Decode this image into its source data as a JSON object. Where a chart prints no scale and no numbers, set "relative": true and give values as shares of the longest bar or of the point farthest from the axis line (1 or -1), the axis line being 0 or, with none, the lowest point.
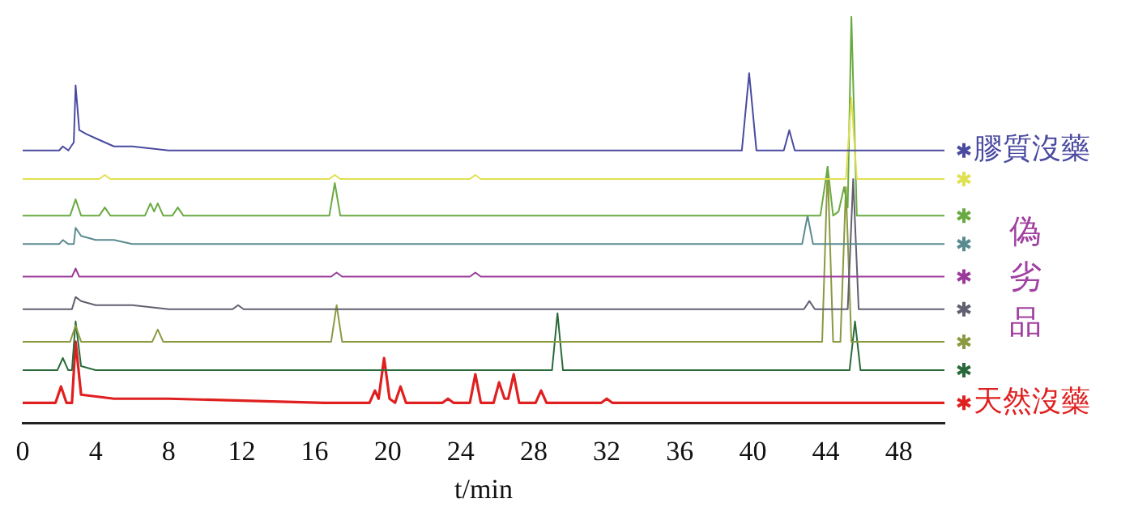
{
  "chart_data": {
    "type": "line",
    "relative": true,
    "xlabel": "t/min",
    "xlim": [
      0,
      50.5
    ],
    "xticks": [
      0,
      4,
      8,
      12,
      16,
      20,
      24,
      28,
      32,
      36,
      40,
      44,
      48
    ],
    "legend": "right",
    "marker": "none",
    "line_style": "solid",
    "annotations": [
      "偽劣品"
    ],
    "series": [
      {
        "name": "膠質沒藥",
        "color": "#4a4aa0",
        "x": [
          0,
          2,
          2.2,
          2.5,
          2.8,
          2.9,
          3.1,
          3.5,
          4,
          4.5,
          5,
          6,
          8,
          10,
          39.4,
          39.8,
          40.2,
          41.7,
          42,
          42.3,
          50.5
        ],
        "values": [
          0.67,
          0.67,
          0.68,
          0.67,
          0.69,
          0.83,
          0.72,
          0.71,
          0.7,
          0.69,
          0.68,
          0.68,
          0.67,
          0.67,
          0.67,
          0.86,
          0.67,
          0.67,
          0.72,
          0.67,
          0.67
        ]
      },
      {
        "color": "#e0e050",
        "x": [
          0,
          4.2,
          4.5,
          4.8,
          16.8,
          17.1,
          17.4,
          24.5,
          24.8,
          25.1,
          45.1,
          45.4,
          45.7,
          50.5
        ],
        "values": [
          0.6,
          0.6,
          0.61,
          0.6,
          0.6,
          0.61,
          0.6,
          0.6,
          0.61,
          0.6,
          0.6,
          0.8,
          0.6,
          0.6
        ]
      },
      {
        "color": "#6aaa40",
        "x": [
          0,
          2.6,
          2.9,
          3.2,
          4.2,
          4.5,
          4.8,
          6.7,
          7,
          7.2,
          7.4,
          7.7,
          8.2,
          8.5,
          8.8,
          16.8,
          17.1,
          17.4,
          43.7,
          44.1,
          44.4,
          44.7,
          45,
          45.2,
          45.4,
          45.7,
          50.5
        ],
        "values": [
          0.51,
          0.51,
          0.55,
          0.51,
          0.51,
          0.53,
          0.51,
          0.51,
          0.54,
          0.52,
          0.54,
          0.51,
          0.51,
          0.53,
          0.51,
          0.51,
          0.59,
          0.51,
          0.51,
          0.63,
          0.51,
          0.52,
          0.58,
          0.53,
          1,
          0.51,
          0.51
        ]
      },
      {
        "color": "#5a8a90",
        "x": [
          0,
          2,
          2.2,
          2.5,
          2.8,
          2.9,
          3.2,
          4,
          5,
          6,
          42.7,
          43,
          43.3,
          50.5
        ],
        "values": [
          0.44,
          0.44,
          0.45,
          0.44,
          0.44,
          0.48,
          0.46,
          0.45,
          0.45,
          0.44,
          0.44,
          0.51,
          0.44,
          0.44
        ]
      },
      {
        "color": "#9a3a9a",
        "x": [
          0,
          2.7,
          2.9,
          3.1,
          16.9,
          17.2,
          17.5,
          24.5,
          24.8,
          25.1,
          50.5
        ],
        "values": [
          0.36,
          0.36,
          0.38,
          0.36,
          0.36,
          0.37,
          0.36,
          0.36,
          0.37,
          0.36,
          0.36
        ]
      },
      {
        "color": "#606070",
        "x": [
          0,
          2.7,
          2.9,
          3.2,
          4,
          6,
          8,
          11.5,
          11.8,
          12.1,
          42.8,
          43.1,
          43.4,
          45.2,
          45.5,
          45.8,
          50.5
        ],
        "values": [
          0.28,
          0.28,
          0.31,
          0.3,
          0.29,
          0.29,
          0.28,
          0.28,
          0.29,
          0.28,
          0.28,
          0.3,
          0.28,
          0.28,
          0.6,
          0.28,
          0.28
        ]
      },
      {
        "color": "#8a9a40",
        "x": [
          0,
          2.6,
          2.9,
          3.2,
          7.1,
          7.4,
          7.7,
          16.9,
          17.2,
          17.5,
          43.8,
          44.1,
          44.4,
          44.8,
          45.1,
          45.4,
          50.5
        ],
        "values": [
          0.2,
          0.2,
          0.24,
          0.2,
          0.2,
          0.23,
          0.2,
          0.2,
          0.29,
          0.2,
          0.2,
          0.63,
          0.2,
          0.2,
          0.58,
          0.2,
          0.2
        ]
      },
      {
        "color": "#2a6a3a",
        "x": [
          0,
          1.9,
          2.2,
          2.5,
          2.7,
          2.9,
          3.2,
          4,
          29,
          29.3,
          29.6,
          45.3,
          45.6,
          45.9,
          50.5
        ],
        "values": [
          0.13,
          0.13,
          0.16,
          0.13,
          0.13,
          0.25,
          0.14,
          0.13,
          0.13,
          0.27,
          0.13,
          0.13,
          0.25,
          0.13,
          0.13
        ]
      },
      {
        "name": "天然沒藥",
        "color": "#e02020",
        "x": [
          0,
          1.8,
          2.1,
          2.4,
          2.7,
          2.9,
          3.2,
          5,
          8,
          16.5,
          19,
          19.3,
          19.5,
          19.8,
          20.1,
          20.4,
          20.7,
          21,
          23,
          23.3,
          23.6,
          24.5,
          24.8,
          25.1,
          25.8,
          26.1,
          26.4,
          26.6,
          26.9,
          27.2,
          28.1,
          28.4,
          28.7,
          31.7,
          32,
          32.3,
          50.5
        ],
        "values": [
          0.05,
          0.05,
          0.09,
          0.05,
          0.05,
          0.2,
          0.07,
          0.06,
          0.06,
          0.05,
          0.05,
          0.08,
          0.06,
          0.16,
          0.06,
          0.05,
          0.09,
          0.05,
          0.05,
          0.06,
          0.05,
          0.05,
          0.12,
          0.05,
          0.05,
          0.1,
          0.06,
          0.06,
          0.12,
          0.05,
          0.05,
          0.08,
          0.05,
          0.05,
          0.06,
          0.05,
          0.05
        ]
      }
    ]
  }
}
